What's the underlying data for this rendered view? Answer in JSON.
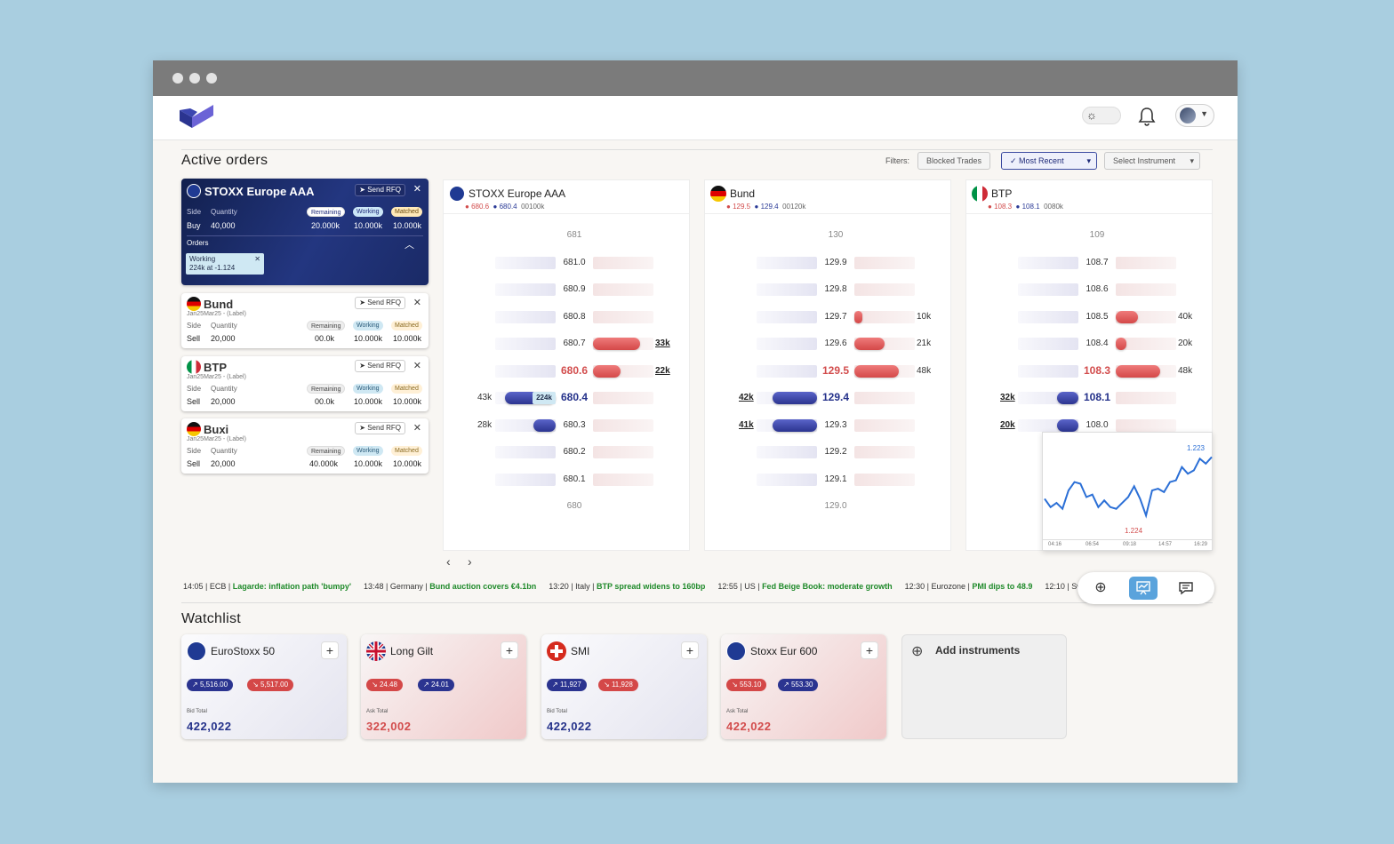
{
  "filters": {
    "label": "Filters:",
    "blocked": "Blocked Trades",
    "recent": "Most Recent",
    "select": "Select Instrument"
  },
  "active_orders": {
    "title": "Active orders"
  },
  "orders": [
    {
      "name": "STOXX Europe AAA",
      "rfq": "Send RFQ",
      "side_label": "Side",
      "qty_label": "Quantity",
      "side": "Buy",
      "qty": "40,000",
      "remaining_label": "Remaining",
      "working_label": "Working",
      "matched_label": "Matched",
      "remaining": "20.000k",
      "working": "10.000k",
      "matched": "10.000k",
      "orders_label": "Orders",
      "chip_status": "Working",
      "chip_detail": "224k at -1.124"
    },
    {
      "name": "Bund",
      "rfq": "Send RFQ",
      "sub": "Jan25Mar25 - (Label)",
      "side_label": "Side",
      "qty_label": "Quantity",
      "side": "Sell",
      "qty": "20,000",
      "remaining_label": "Remaining",
      "working_label": "Working",
      "matched_label": "Matched",
      "remaining": "00.0k",
      "working": "10.000k",
      "matched": "10.000k"
    },
    {
      "name": "BTP",
      "rfq": "Send RFQ",
      "sub": "Jan25Mar25 - (Label)",
      "side_label": "Side",
      "qty_label": "Quantity",
      "side": "Sell",
      "qty": "20,000",
      "remaining_label": "Remaining",
      "working_label": "Working",
      "matched_label": "Matched",
      "remaining": "00.0k",
      "working": "10.000k",
      "matched": "10.000k"
    },
    {
      "name": "Buxi",
      "rfq": "Send RFQ",
      "sub": "Jan25Mar25 - (Label)",
      "side_label": "Side",
      "qty_label": "Quantity",
      "side": "Sell",
      "qty": "20,000",
      "remaining_label": "Remaining",
      "working_label": "Working",
      "matched_label": "Matched",
      "remaining": "40.000k",
      "working": "10.000k",
      "matched": "10.000k"
    }
  ],
  "ladders": [
    {
      "name": "STOXX Europe AAA",
      "ask": "680.6",
      "bid": "680.4",
      "vol": "00100k",
      "rows": [
        "681",
        "681.0",
        "680.9",
        "680.8",
        "680.7",
        "680.6",
        "680.4",
        "680.3",
        "680.2",
        "680.1",
        "680"
      ],
      "ask_qty": [
        "",
        "",
        "",
        "",
        "33k",
        "22k",
        "",
        "",
        "",
        "",
        ""
      ],
      "bid_qty": [
        "",
        "",
        "",
        "",
        "",
        "",
        "43k",
        "28k",
        "",
        "",
        ""
      ],
      "ask_fill": [
        0,
        0,
        0,
        0,
        0.85,
        0.5,
        0,
        0,
        0,
        0,
        0
      ],
      "bid_fill": [
        0,
        0,
        0,
        0,
        0,
        0,
        0.92,
        0.4,
        0,
        0,
        0
      ],
      "bid_chip": "224k"
    },
    {
      "name": "Bund",
      "ask": "129.5",
      "bid": "129.4",
      "vol": "00120k",
      "rows": [
        "130",
        "129.9",
        "129.8",
        "129.7",
        "129.6",
        "129.5",
        "129.4",
        "129.3",
        "129.2",
        "129.1",
        "129.0"
      ],
      "ask_qty": [
        "",
        "",
        "",
        "10k",
        "21k",
        "48k",
        "",
        "",
        "",
        "",
        ""
      ],
      "bid_qty": [
        "",
        "",
        "",
        "",
        "",
        "",
        "42k",
        "41k",
        "",
        "",
        ""
      ],
      "ask_fill": [
        0,
        0,
        0,
        0.15,
        0.55,
        0.8,
        0,
        0,
        0,
        0,
        0
      ],
      "bid_fill": [
        0,
        0,
        0,
        0,
        0,
        0,
        0.8,
        0.8,
        0,
        0,
        0
      ]
    },
    {
      "name": "BTP",
      "ask": "108.3",
      "bid": "108.1",
      "vol": "0080k",
      "rows": [
        "109",
        "108.7",
        "108.6",
        "108.5",
        "108.4",
        "108.3",
        "108.1",
        "108.0",
        "",
        "",
        ""
      ],
      "ask_qty": [
        "",
        "",
        "",
        "40k",
        "20k",
        "48k",
        "",
        "",
        "",
        "",
        ""
      ],
      "bid_qty": [
        "",
        "",
        "",
        "",
        "",
        "",
        "32k",
        "20k",
        "",
        "",
        ""
      ],
      "ask_fill": [
        0,
        0,
        0,
        0.4,
        0.2,
        0.8,
        0,
        0,
        0,
        0,
        0
      ],
      "bid_fill": [
        0,
        0,
        0,
        0,
        0,
        0,
        0.38,
        0.38,
        0,
        0,
        0
      ]
    }
  ],
  "mini_chart": {
    "high": "1.223",
    "low": "1.224",
    "times": [
      "04:16",
      "06:54",
      "09:18",
      "14:57",
      "16:29"
    ],
    "values": [
      0.4,
      0.3,
      0.35,
      0.28,
      0.5,
      0.6,
      0.58,
      0.42,
      0.45,
      0.3,
      0.38,
      0.3,
      0.28,
      0.35,
      0.42,
      0.55,
      0.4,
      0.2,
      0.5,
      0.52,
      0.48,
      0.6,
      0.62,
      0.78,
      0.7,
      0.74,
      0.88,
      0.82,
      0.9
    ]
  },
  "news": [
    {
      "time": "14:05",
      "src": "ECB",
      "text": "Lagarde: inflation path 'bumpy'"
    },
    {
      "time": "13:48",
      "src": "Germany",
      "text": "Bund auction covers €4.1bn"
    },
    {
      "time": "13:20",
      "src": "Italy",
      "text": "BTP spread widens to 160bp"
    },
    {
      "time": "12:55",
      "src": "US",
      "text": "Fed Beige Book: moderate growth"
    },
    {
      "time": "12:30",
      "src": "Eurozone",
      "text": "PMI dips to 48.9"
    },
    {
      "time": "12:10",
      "src": "Switzerl",
      "text": ""
    }
  ],
  "watchlist": {
    "title": "Watchlist",
    "add": "Add instruments",
    "items": [
      {
        "name": "EuroStoxx 50",
        "a": "5,516.00",
        "b": "5,517.00",
        "tlabel": "Bid Total",
        "total": "422,022",
        "tone": "blue"
      },
      {
        "name": "Long Gilt",
        "a": "24.48",
        "b": "24.01",
        "tlabel": "Ask Total",
        "total": "322,002",
        "tone": "red"
      },
      {
        "name": "SMI",
        "a": "11,927",
        "b": "11,928",
        "tlabel": "Bid Total",
        "total": "422,022",
        "tone": "blue"
      },
      {
        "name": "Stoxx Eur 600",
        "a": "553.10",
        "b": "553.30",
        "tlabel": "Ask Total",
        "total": "422,022",
        "tone": "red"
      }
    ]
  }
}
